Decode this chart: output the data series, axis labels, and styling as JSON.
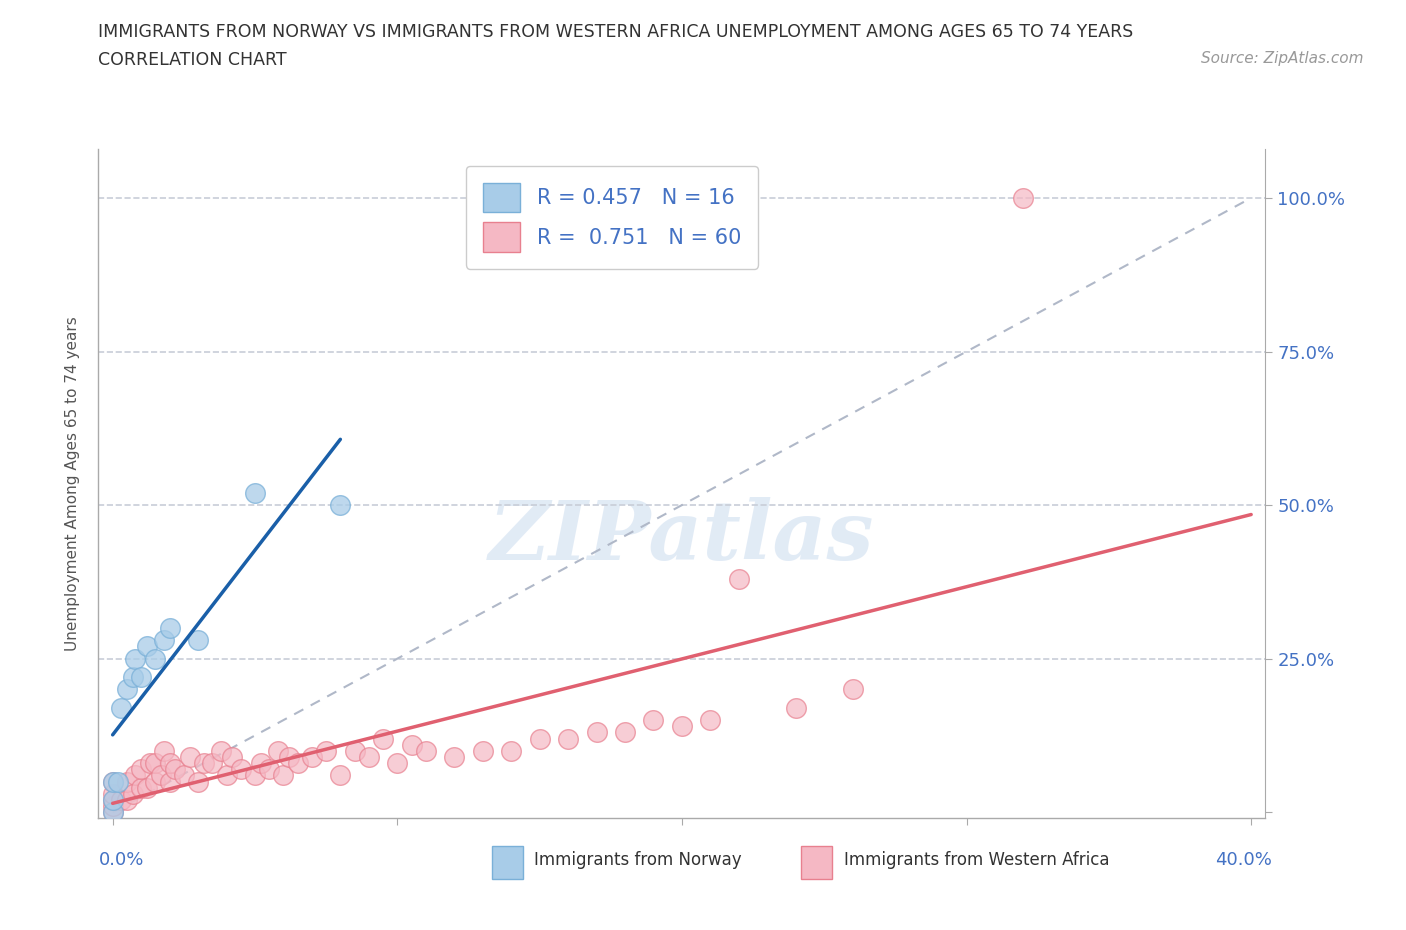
{
  "title_line1": "IMMIGRANTS FROM NORWAY VS IMMIGRANTS FROM WESTERN AFRICA UNEMPLOYMENT AMONG AGES 65 TO 74 YEARS",
  "title_line2": "CORRELATION CHART",
  "source_text": "Source: ZipAtlas.com",
  "ylabel": "Unemployment Among Ages 65 to 74 years",
  "xlim": [
    -0.005,
    0.405
  ],
  "ylim": [
    -0.01,
    1.08
  ],
  "xtick_left": 0.0,
  "xtick_right": 0.4,
  "yticks": [
    0.0,
    0.25,
    0.5,
    0.75,
    1.0
  ],
  "yticklabels_right": [
    "",
    "25.0%",
    "50.0%",
    "75.0%",
    "100.0%"
  ],
  "norway_color": "#a8cce8",
  "norway_edge": "#7ab0d8",
  "norway_line_color": "#1a5fa8",
  "wa_color": "#f5b8c4",
  "wa_edge": "#e8808f",
  "wa_line_color": "#e06070",
  "ref_line_color": "#b0b8c8",
  "legend_R_norway": "0.457",
  "legend_N_norway": "16",
  "legend_R_wa": "0.751",
  "legend_N_wa": "60",
  "norway_x": [
    0.0,
    0.0,
    0.0,
    0.002,
    0.003,
    0.005,
    0.007,
    0.008,
    0.01,
    0.012,
    0.015,
    0.018,
    0.02,
    0.03,
    0.05,
    0.08
  ],
  "norway_y": [
    0.0,
    0.02,
    0.05,
    0.05,
    0.17,
    0.2,
    0.22,
    0.25,
    0.22,
    0.27,
    0.25,
    0.28,
    0.3,
    0.28,
    0.52,
    0.5
  ],
  "wa_x": [
    0.0,
    0.0,
    0.0,
    0.0,
    0.0,
    0.003,
    0.005,
    0.005,
    0.007,
    0.008,
    0.01,
    0.01,
    0.012,
    0.013,
    0.015,
    0.015,
    0.017,
    0.018,
    0.02,
    0.02,
    0.022,
    0.025,
    0.027,
    0.03,
    0.032,
    0.035,
    0.038,
    0.04,
    0.042,
    0.045,
    0.05,
    0.052,
    0.055,
    0.058,
    0.06,
    0.062,
    0.065,
    0.07,
    0.075,
    0.08,
    0.085,
    0.09,
    0.095,
    0.1,
    0.105,
    0.11,
    0.12,
    0.13,
    0.14,
    0.15,
    0.16,
    0.17,
    0.18,
    0.19,
    0.2,
    0.21,
    0.22,
    0.24,
    0.26,
    0.32
  ],
  "wa_y": [
    0.0,
    0.01,
    0.02,
    0.03,
    0.05,
    0.02,
    0.02,
    0.05,
    0.03,
    0.06,
    0.04,
    0.07,
    0.04,
    0.08,
    0.05,
    0.08,
    0.06,
    0.1,
    0.05,
    0.08,
    0.07,
    0.06,
    0.09,
    0.05,
    0.08,
    0.08,
    0.1,
    0.06,
    0.09,
    0.07,
    0.06,
    0.08,
    0.07,
    0.1,
    0.06,
    0.09,
    0.08,
    0.09,
    0.1,
    0.06,
    0.1,
    0.09,
    0.12,
    0.08,
    0.11,
    0.1,
    0.09,
    0.1,
    0.1,
    0.12,
    0.12,
    0.13,
    0.13,
    0.15,
    0.14,
    0.15,
    0.38,
    0.17,
    0.2,
    1.0
  ],
  "watermark_text": "ZIPatlas",
  "background_color": "#ffffff",
  "grid_color": "#c8cdd8",
  "tick_color": "#4472c4",
  "label_norway": "Immigrants from Norway",
  "label_wa": "Immigrants from Western Africa"
}
